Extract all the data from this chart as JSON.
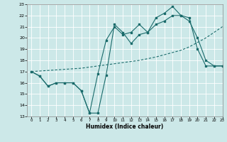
{
  "xlabel": "Humidex (Indice chaleur)",
  "xlim": [
    -0.5,
    23
  ],
  "ylim": [
    13,
    23
  ],
  "xticks": [
    0,
    1,
    2,
    3,
    4,
    5,
    6,
    7,
    8,
    9,
    10,
    11,
    12,
    13,
    14,
    15,
    16,
    17,
    18,
    19,
    20,
    21,
    22,
    23
  ],
  "yticks": [
    13,
    14,
    15,
    16,
    17,
    18,
    19,
    20,
    21,
    22,
    23
  ],
  "bg_color": "#cce8e8",
  "line_color": "#1a6b6b",
  "grid_color": "#b8d8d8",
  "line1_x": [
    0,
    1,
    2,
    3,
    4,
    5,
    6,
    7,
    8,
    9,
    10,
    11,
    12,
    13,
    14,
    15,
    16,
    17,
    18,
    19,
    20,
    21,
    22,
    23
  ],
  "line1_y": [
    17.0,
    16.6,
    15.7,
    16.0,
    16.0,
    16.0,
    15.3,
    13.3,
    13.3,
    16.7,
    21.2,
    20.5,
    19.5,
    20.3,
    20.5,
    21.2,
    21.5,
    22.0,
    22.0,
    21.8,
    19.0,
    17.5,
    17.5,
    17.5
  ],
  "line2_x": [
    0,
    1,
    2,
    3,
    4,
    5,
    6,
    7,
    8,
    9,
    10,
    11,
    12,
    13,
    14,
    15,
    16,
    17,
    18,
    19,
    20,
    21,
    22,
    23
  ],
  "line2_y": [
    17.0,
    16.6,
    15.7,
    16.0,
    16.0,
    16.0,
    15.3,
    13.3,
    16.8,
    19.8,
    21.0,
    20.3,
    20.5,
    21.2,
    20.5,
    21.8,
    22.2,
    22.8,
    22.0,
    21.5,
    20.0,
    18.0,
    17.5,
    17.5
  ],
  "line3_x": [
    0,
    1,
    2,
    3,
    4,
    5,
    6,
    7,
    8,
    9,
    10,
    11,
    12,
    13,
    14,
    15,
    16,
    17,
    18,
    19,
    20,
    21,
    22,
    23
  ],
  "line3_y": [
    17.0,
    17.05,
    17.1,
    17.15,
    17.2,
    17.25,
    17.3,
    17.4,
    17.5,
    17.6,
    17.7,
    17.8,
    17.9,
    18.0,
    18.15,
    18.3,
    18.5,
    18.7,
    18.9,
    19.2,
    19.6,
    20.0,
    20.5,
    21.0
  ]
}
